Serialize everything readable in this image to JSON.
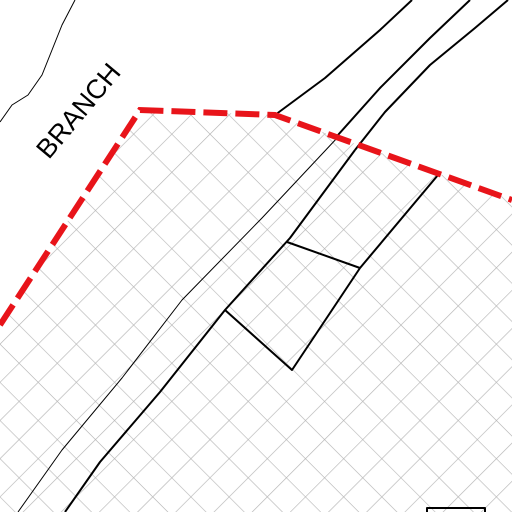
{
  "map": {
    "labels": [
      "BRANCH"
    ]
  }
}
